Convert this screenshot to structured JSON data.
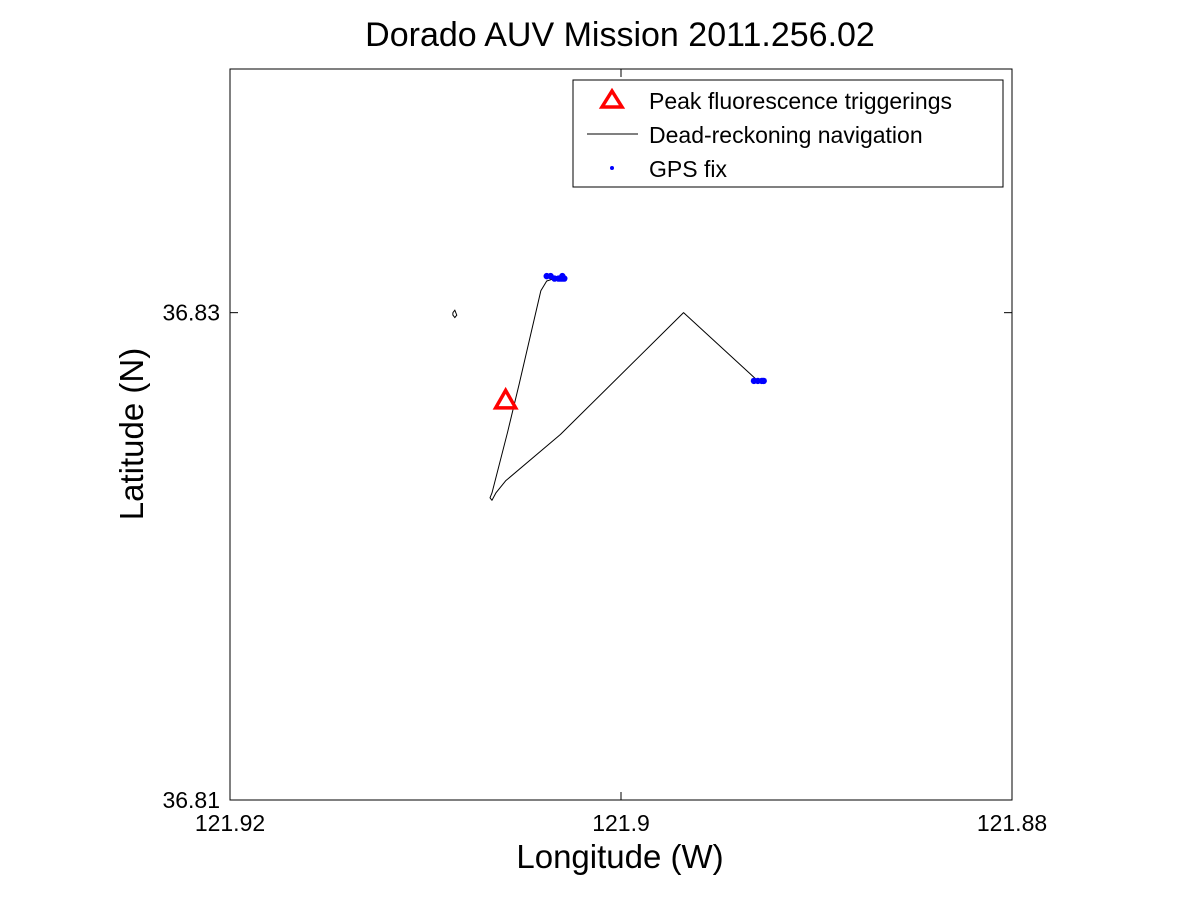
{
  "chart_data": {
    "type": "scatter",
    "title": "Dorado AUV Mission 2011.256.02",
    "xlabel": "Longitude (W)",
    "ylabel": "Latitude (N)",
    "xlim": [
      121.92,
      121.88
    ],
    "ylim": [
      36.81,
      36.84
    ],
    "x_reversed": true,
    "xticks": [
      121.92,
      121.9,
      121.88
    ],
    "xtick_labels": [
      "121.92",
      "121.9",
      "121.88"
    ],
    "yticks": [
      36.81,
      36.83
    ],
    "ytick_labels": [
      "36.81",
      "36.83"
    ],
    "grid": false,
    "legend_position": "top-right",
    "series": [
      {
        "name": "Peak fluorescence triggerings",
        "kind": "marker",
        "marker": "triangle-open",
        "color": "#ff0000",
        "points": [
          [
            121.9059,
            36.8264
          ]
        ]
      },
      {
        "name": "Dead-reckoning navigation",
        "kind": "line",
        "color": "#000000",
        "points": [
          [
            121.9034,
            36.8314
          ],
          [
            121.9038,
            36.8313
          ],
          [
            121.9041,
            36.8309
          ],
          [
            121.9052,
            36.8271
          ],
          [
            121.9058,
            36.8251
          ],
          [
            121.9066,
            36.8226
          ],
          [
            121.9067,
            36.8224
          ],
          [
            121.9066,
            36.8223
          ],
          [
            121.9064,
            36.8226
          ],
          [
            121.9059,
            36.8231
          ],
          [
            121.9031,
            36.825
          ],
          [
            121.8968,
            36.83
          ],
          [
            121.893,
            36.8272
          ],
          [
            121.8929,
            36.8272
          ],
          [
            121.8926,
            36.8272
          ]
        ]
      },
      {
        "name": "GPS fix",
        "kind": "marker",
        "marker": "dot",
        "color": "#0000ff",
        "points": [
          [
            121.9038,
            36.8315
          ],
          [
            121.9036,
            36.8315
          ],
          [
            121.9034,
            36.8314
          ],
          [
            121.9032,
            36.8314
          ],
          [
            121.9031,
            36.8314
          ],
          [
            121.903,
            36.8314
          ],
          [
            121.903,
            36.8315
          ],
          [
            121.9029,
            36.8314
          ],
          [
            121.8932,
            36.8272
          ],
          [
            121.893,
            36.8272
          ],
          [
            121.8928,
            36.8272
          ],
          [
            121.8927,
            36.8272
          ]
        ]
      }
    ],
    "annotations": [
      {
        "kind": "path",
        "color": "#000000",
        "points": [
          [
            121.9086,
            36.83
          ],
          [
            121.9085,
            36.8301
          ],
          [
            121.9084,
            36.8299
          ],
          [
            121.9085,
            36.8298
          ],
          [
            121.9086,
            36.8299
          ],
          [
            121.9086,
            36.83
          ]
        ]
      }
    ]
  }
}
